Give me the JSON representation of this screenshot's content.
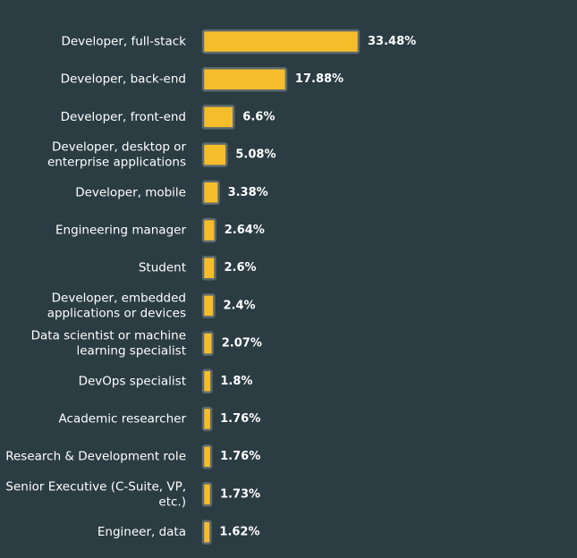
{
  "chart_data": {
    "type": "bar",
    "orientation": "horizontal",
    "categories": [
      [
        "Developer, full-stack"
      ],
      [
        "Developer, back-end"
      ],
      [
        "Developer, front-end"
      ],
      [
        "Developer, desktop or",
        "enterprise applications"
      ],
      [
        "Developer, mobile"
      ],
      [
        "Engineering manager"
      ],
      [
        "Student"
      ],
      [
        "Developer, embedded",
        "applications or devices"
      ],
      [
        "Data scientist or machine",
        "learning specialist"
      ],
      [
        "DevOps specialist"
      ],
      [
        "Academic researcher"
      ],
      [
        "Research & Development role"
      ],
      [
        "Senior Executive (C-Suite, VP,",
        "etc.)"
      ],
      [
        "Engineer, data"
      ]
    ],
    "values": [
      33.48,
      17.88,
      6.6,
      5.08,
      3.38,
      2.64,
      2.6,
      2.4,
      2.07,
      1.8,
      1.76,
      1.76,
      1.73,
      1.62
    ],
    "value_labels": [
      "33.48%",
      "17.88%",
      "6.6%",
      "5.08%",
      "3.38%",
      "2.64%",
      "2.6%",
      "2.4%",
      "2.07%",
      "1.8%",
      "1.76%",
      "1.76%",
      "1.73%",
      "1.62%"
    ],
    "title": "",
    "xlabel": "",
    "ylabel": "",
    "xlim": [
      0,
      33.48
    ],
    "grid": false,
    "legend": "none",
    "colors": {
      "background": "#2b3c43",
      "bar_fill": "#f6bd2b",
      "bar_stroke": "#5d6a6f",
      "text": "#ffffff"
    }
  }
}
